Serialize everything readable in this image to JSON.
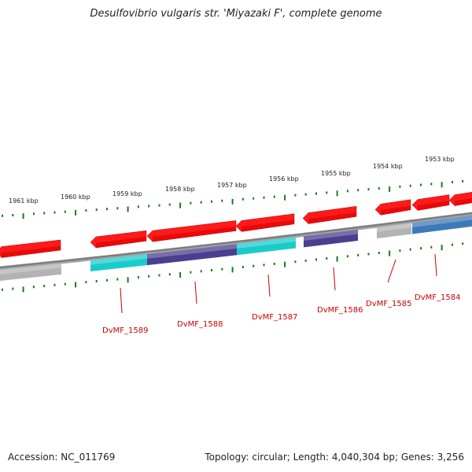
{
  "title": "Desulfovibrio vulgaris str. 'Miyazaki F', complete genome",
  "footer": {
    "accession": "Accession: NC_011769",
    "summary": "Topology: circular; Length: 4,040,304 bp; Genes: 3,256"
  },
  "scale": {
    "tick_labels": [
      "1961 kbp",
      "1960 kbp",
      "1959 kbp",
      "1958 kbp",
      "1957 kbp",
      "1956 kbp",
      "1955 kbp",
      "1954 kbp",
      "1953 kbp"
    ]
  },
  "genes": [
    {
      "label": "DvMF_1589"
    },
    {
      "label": "DvMF_1588"
    },
    {
      "label": "DvMF_1587"
    },
    {
      "label": "DvMF_1586"
    },
    {
      "label": "DvMF_1585"
    },
    {
      "label": "DvMF_1584"
    }
  ],
  "colors": {
    "cds": "#ff1a1a",
    "backbone": "#7a7a7a",
    "cyan": "#19cccc",
    "purple": "#4a3f8f",
    "grey": "#b3b3b3",
    "blue": "#3d7ab8",
    "tick": "#1a7a1a",
    "label": "#cc0000"
  }
}
